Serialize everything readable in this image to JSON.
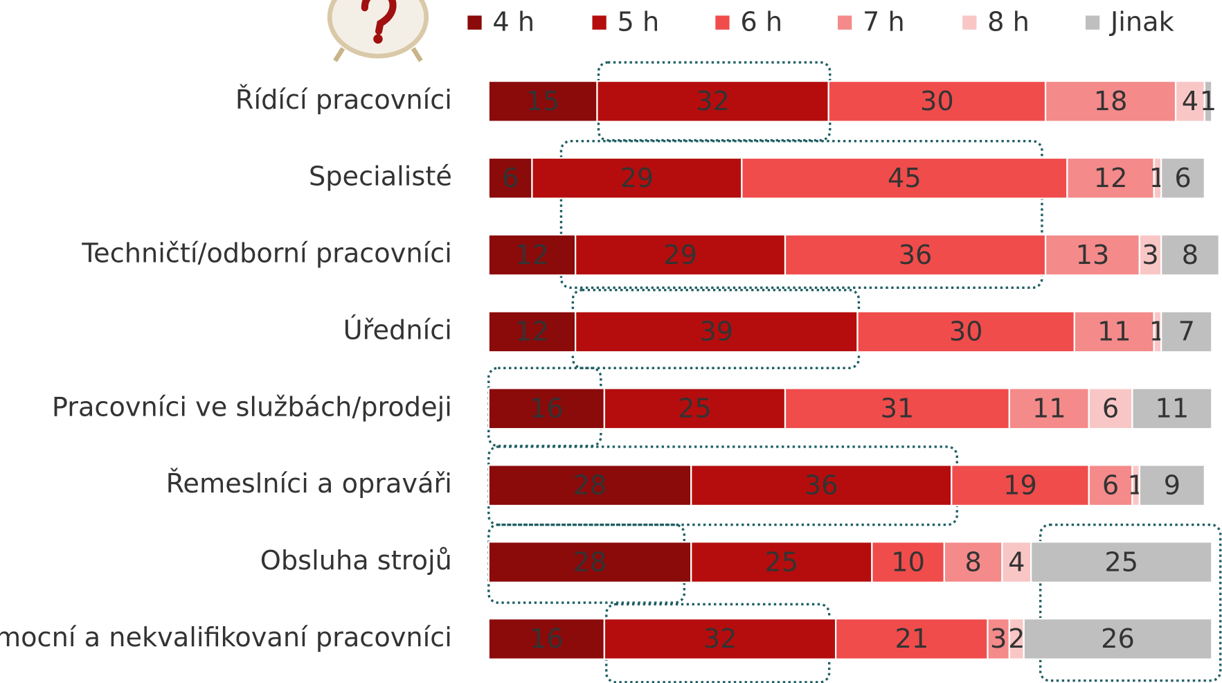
{
  "chart_data": {
    "type": "stacked-bar",
    "categories": [
      "Řídící pracovníci",
      "Specialisté",
      "Techničtí/odborní pracovníci",
      "Úředníci",
      "Pracovníci ve službách/prodeji",
      "Řemeslníci a opraváři",
      "Obsluha strojů",
      "Pomocní a nekvalifikovaní pracovníci"
    ],
    "series": [
      {
        "name": "4 h",
        "color": "#8b0a0a",
        "values": [
          15,
          6,
          12,
          12,
          16,
          28,
          28,
          16
        ]
      },
      {
        "name": "5 h",
        "color": "#b50d0d",
        "values": [
          32,
          29,
          29,
          39,
          25,
          36,
          25,
          32
        ]
      },
      {
        "name": "6 h",
        "color": "#f04c4c",
        "values": [
          30,
          45,
          36,
          30,
          31,
          19,
          10,
          21
        ]
      },
      {
        "name": "7 h",
        "color": "#f48a8a",
        "values": [
          18,
          12,
          13,
          11,
          11,
          6,
          8,
          3
        ]
      },
      {
        "name": "8 h",
        "color": "#f9c6c6",
        "values": [
          4,
          1,
          3,
          1,
          6,
          1,
          4,
          2
        ]
      },
      {
        "name": "Jinak",
        "color": "#bfbfbf",
        "values": [
          1,
          6,
          8,
          7,
          11,
          9,
          25,
          26
        ]
      }
    ],
    "xlim": [
      0,
      100
    ],
    "legend": "top"
  }
}
